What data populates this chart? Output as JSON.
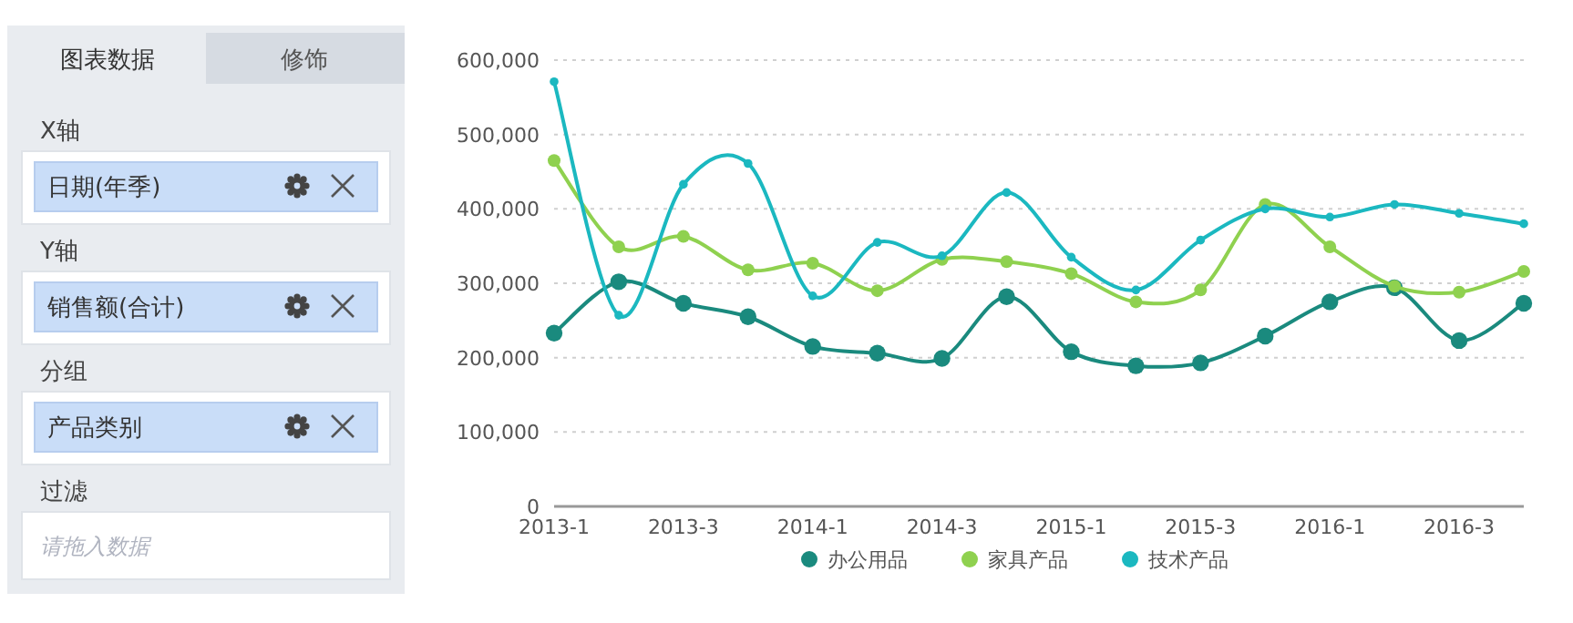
{
  "chart_data": [
    {
      "type": "other",
      "annotations": [
        "图表数据",
        "修饰",
        "X轴",
        "日期(年季)",
        "Y轴",
        "销售额(合计)",
        "分组",
        "产品类别",
        "过滤",
        "请拖入数据"
      ]
    },
    {
      "type": "line",
      "categories": [
        "2013-1",
        null,
        "2013-3",
        null,
        "2014-1",
        null,
        "2014-3",
        null,
        "2015-1",
        null,
        "2015-3",
        null,
        "2016-1",
        null,
        "2016-3",
        null
      ],
      "series": [
        {
          "name": "办公用品",
          "color": "#1a8a7e",
          "values": [
            233000,
            302000,
            273000,
            255000,
            215000,
            206000,
            199000,
            282000,
            208000,
            189000,
            193000,
            229000,
            275000,
            294000,
            223000,
            273000
          ]
        },
        {
          "name": "家具产品",
          "color": "#8fd14f",
          "values": [
            465000,
            349000,
            363000,
            318000,
            327000,
            290000,
            332000,
            329000,
            313000,
            275000,
            291000,
            406000,
            349000,
            296000,
            288000,
            316000
          ]
        },
        {
          "name": "技术产品",
          "color": "#1bb8c0",
          "values": [
            571000,
            257000,
            433000,
            461000,
            283000,
            355000,
            337000,
            422000,
            335000,
            291000,
            358000,
            400000,
            389000,
            406000,
            394000,
            380000
          ]
        }
      ],
      "ylim": [
        0,
        600000
      ],
      "yticks": [
        0,
        {
          "value": 100000,
          "label": "100,000"
        },
        {
          "value": 200000,
          "label": "200,000"
        },
        {
          "value": 300000,
          "label": "300,000"
        },
        {
          "value": 400000,
          "label": "400,000"
        },
        {
          "value": 500000,
          "label": "500,000"
        },
        {
          "value": 600000,
          "label": "600,000"
        }
      ],
      "grid": "y",
      "legend": "bottom",
      "marker": "circle",
      "line_style": "solid"
    }
  ]
}
